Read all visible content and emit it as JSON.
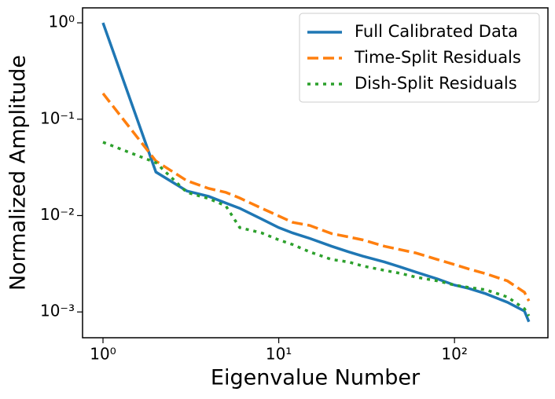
{
  "chart_data": {
    "type": "line",
    "xlabel": "Eigenvalue Number",
    "ylabel": "Normalized Amplitude",
    "xscale": "log",
    "yscale": "log",
    "xlim": [
      0.765,
      340
    ],
    "ylim": [
      0.00054,
      1.43
    ],
    "xticks": [
      {
        "value": 1,
        "label": "10⁰"
      },
      {
        "value": 10,
        "label": "10¹"
      },
      {
        "value": 100,
        "label": "10²"
      }
    ],
    "yticks": [
      {
        "value": 0.001,
        "label": "10⁻³"
      },
      {
        "value": 0.01,
        "label": "10⁻²"
      },
      {
        "value": 0.1,
        "label": "10⁻¹"
      },
      {
        "value": 1,
        "label": "10⁰"
      }
    ],
    "legend": "upper right",
    "x": [
      1,
      2,
      3,
      4,
      5,
      6,
      8,
      10,
      12,
      15,
      20,
      25,
      30,
      40,
      50,
      60,
      80,
      100,
      120,
      150,
      200,
      250,
      265
    ],
    "series": [
      {
        "name": "Full Calibrated Data",
        "color": "#1f77b4",
        "style": "solid",
        "values": [
          1.0,
          0.0283,
          0.018,
          0.0158,
          0.0135,
          0.0119,
          0.0092,
          0.0075,
          0.0066,
          0.0058,
          0.0048,
          0.0042,
          0.0038,
          0.0033,
          0.0029,
          0.0026,
          0.0022,
          0.0019,
          0.00176,
          0.00155,
          0.00126,
          0.00102,
          0.00079
        ]
      },
      {
        "name": "Time-Split Residuals",
        "color": "#ff7f0e",
        "style": "dashed",
        "values": [
          0.185,
          0.0368,
          0.023,
          0.0191,
          0.0174,
          0.0152,
          0.0119,
          0.0099,
          0.0085,
          0.0079,
          0.0065,
          0.006,
          0.0056,
          0.0048,
          0.0044,
          0.0041,
          0.0035,
          0.0031,
          0.0028,
          0.0025,
          0.0021,
          0.0016,
          0.0013
        ]
      },
      {
        "name": "Dish-Split Residuals",
        "color": "#2ca02c",
        "style": "dotted",
        "values": [
          0.0577,
          0.0354,
          0.0174,
          0.015,
          0.0126,
          0.0075,
          0.0066,
          0.0056,
          0.005,
          0.0042,
          0.0035,
          0.0033,
          0.003,
          0.0027,
          0.0025,
          0.0023,
          0.0021,
          0.0019,
          0.0018,
          0.0017,
          0.00143,
          0.00108,
          0.00091
        ]
      }
    ]
  }
}
